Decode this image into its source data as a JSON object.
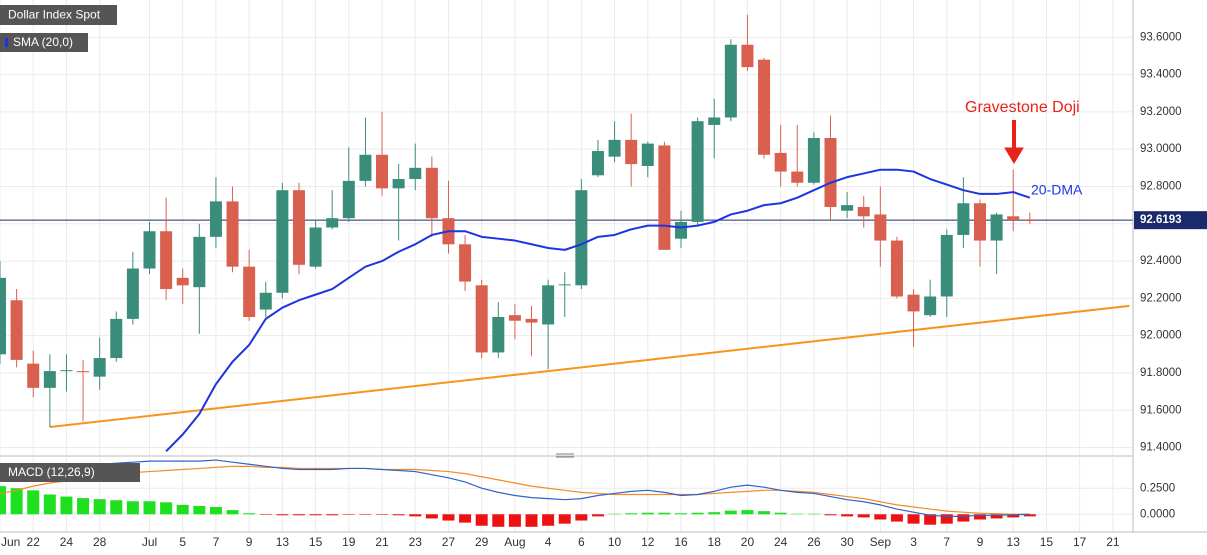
{
  "chart_data": {
    "type": "candlestick",
    "title": "Dollar Index Spot",
    "categories": [
      "Jun",
      null,
      "22",
      null,
      "24",
      null,
      "28",
      null,
      null,
      "Jul",
      null,
      "5",
      null,
      "7",
      null,
      "9",
      null,
      "13",
      null,
      "15",
      null,
      "19",
      null,
      "21",
      null,
      "23",
      null,
      "27",
      null,
      "29",
      null,
      "Aug",
      null,
      "4",
      null,
      "6",
      null,
      "10",
      null,
      "12",
      null,
      "16",
      null,
      "18",
      null,
      "20",
      null,
      "24",
      null,
      "26",
      null,
      "30",
      null,
      "Sep",
      null,
      "3",
      null,
      "7",
      null,
      "9",
      null,
      "13",
      null,
      "15",
      null,
      "17",
      null,
      "21",
      null
    ],
    "candles": {
      "up_color": "#3b8d7b",
      "down_color": "#d9604f",
      "open": [
        91.9,
        92.19,
        91.85,
        91.72,
        91.81,
        91.81,
        91.78,
        91.88,
        92.09,
        92.36,
        92.56,
        92.31,
        92.26,
        92.53,
        92.72,
        92.37,
        92.14,
        92.23,
        92.78,
        92.37,
        92.58,
        92.63,
        92.83,
        92.97,
        92.79,
        92.84,
        92.9,
        92.63,
        92.49,
        92.27,
        91.91,
        92.11,
        92.09,
        92.06,
        92.27,
        92.27,
        92.86,
        92.96,
        93.05,
        92.91,
        93.02,
        92.52,
        92.61,
        93.13,
        93.17,
        93.56,
        93.48,
        92.98,
        92.88,
        92.82,
        93.06,
        92.67,
        92.69,
        92.65,
        92.51,
        92.22,
        92.11,
        92.21,
        92.54,
        92.71,
        92.51,
        92.64,
        92.62,
        null,
        null,
        null,
        null,
        null,
        null
      ],
      "high": [
        92.4,
        92.25,
        91.92,
        91.9,
        91.9,
        91.87,
        91.99,
        92.13,
        92.45,
        92.61,
        92.74,
        92.36,
        92.6,
        92.85,
        92.8,
        92.46,
        92.29,
        92.82,
        92.82,
        92.62,
        92.78,
        93.01,
        93.17,
        93.2,
        92.92,
        93.03,
        92.96,
        92.83,
        92.54,
        92.3,
        92.18,
        92.17,
        92.16,
        92.3,
        92.34,
        92.84,
        93.05,
        93.15,
        93.19,
        93.04,
        93.04,
        92.67,
        93.17,
        93.27,
        93.59,
        93.72,
        93.49,
        93.13,
        93.13,
        93.09,
        93.18,
        92.77,
        92.75,
        92.8,
        92.53,
        92.25,
        92.3,
        92.57,
        92.85,
        92.73,
        92.66,
        92.89,
        92.66,
        null,
        null,
        null,
        null,
        null,
        null
      ],
      "low": [
        91.85,
        91.83,
        91.67,
        91.51,
        91.7,
        91.54,
        91.71,
        91.86,
        92.06,
        92.33,
        92.19,
        92.17,
        92.01,
        92.47,
        92.34,
        92.08,
        92.1,
        92.2,
        92.33,
        92.36,
        92.57,
        92.61,
        92.8,
        92.75,
        92.51,
        92.78,
        92.53,
        92.44,
        92.24,
        91.88,
        91.88,
        91.98,
        91.89,
        91.82,
        92.1,
        92.25,
        92.85,
        92.93,
        92.8,
        92.85,
        92.46,
        92.47,
        92.59,
        92.95,
        93.15,
        93.42,
        92.95,
        92.8,
        92.8,
        92.81,
        92.62,
        92.63,
        92.58,
        92.37,
        92.2,
        91.94,
        92.1,
        92.1,
        92.47,
        92.37,
        92.33,
        92.56,
        92.6,
        null,
        null,
        null,
        null,
        null,
        null
      ],
      "close": [
        92.31,
        91.87,
        91.72,
        91.81,
        91.815,
        91.805,
        91.88,
        92.09,
        92.36,
        92.56,
        92.25,
        92.27,
        92.53,
        92.72,
        92.37,
        92.1,
        92.23,
        92.78,
        92.38,
        92.58,
        92.63,
        92.83,
        92.97,
        92.79,
        92.84,
        92.9,
        92.63,
        92.49,
        92.29,
        91.91,
        92.1,
        92.08,
        92.07,
        92.27,
        92.275,
        92.78,
        92.99,
        93.05,
        92.92,
        93.03,
        92.46,
        92.61,
        93.15,
        93.17,
        93.56,
        93.44,
        92.97,
        92.88,
        92.82,
        93.06,
        92.69,
        92.7,
        92.64,
        92.51,
        92.21,
        92.13,
        92.21,
        92.54,
        92.71,
        92.51,
        92.65,
        92.62,
        92.6193,
        null,
        null,
        null,
        null,
        null,
        null
      ]
    },
    "sma": {
      "name": "SMA (20,0)",
      "label": "20-DMA",
      "color": "#1d35e0",
      "values": [
        null,
        null,
        null,
        null,
        null,
        null,
        null,
        null,
        null,
        null,
        91.38,
        91.47,
        91.58,
        91.74,
        91.86,
        91.95,
        92.09,
        92.15,
        92.19,
        92.22,
        92.25,
        92.31,
        92.37,
        92.4,
        92.45,
        92.49,
        92.54,
        92.56,
        92.56,
        92.53,
        92.52,
        92.51,
        92.49,
        92.47,
        92.46,
        92.49,
        92.53,
        92.54,
        92.57,
        92.59,
        92.59,
        92.58,
        92.59,
        92.61,
        92.65,
        92.67,
        92.7,
        92.71,
        92.74,
        92.78,
        92.82,
        92.85,
        92.87,
        92.89,
        92.89,
        92.88,
        92.84,
        92.81,
        92.78,
        92.76,
        92.76,
        92.77,
        92.74,
        null,
        null,
        null,
        null,
        null,
        null
      ]
    },
    "trendline": {
      "color": "#f7941d",
      "x": [
        3,
        68
      ],
      "values": [
        91.51,
        92.16
      ]
    },
    "last_price": {
      "value": 92.6193,
      "color": "#1a2a6c"
    },
    "annotations": [
      {
        "text": "Gravestone Doji",
        "color": "#e8231a"
      }
    ],
    "ylim": [
      91.36,
      93.8
    ],
    "yticks": [
      {
        "value": 91.4,
        "label": "91.4000"
      },
      {
        "value": 91.6,
        "label": "91.6000"
      },
      {
        "value": 91.8,
        "label": "91.8000"
      },
      {
        "value": 92.0,
        "label": "92.0000"
      },
      {
        "value": 92.2,
        "label": "92.2000"
      },
      {
        "value": 92.4,
        "label": "92.4000"
      },
      {
        "value": 92.6,
        "label": "92.6000"
      },
      {
        "value": 92.8,
        "label": "92.8000"
      },
      {
        "value": 93.0,
        "label": "93.0000"
      },
      {
        "value": 93.2,
        "label": "93.2000"
      },
      {
        "value": 93.4,
        "label": "93.4000"
      },
      {
        "value": 93.6,
        "label": "93.6000"
      }
    ],
    "grid": true,
    "macd": {
      "type": "macd",
      "name": "MACD (12,26,9)",
      "ylim": [
        -0.17,
        0.54
      ],
      "yticks": [
        {
          "value": 0,
          "label": "0.0000"
        },
        {
          "value": 0.25,
          "label": "0.2500"
        }
      ],
      "histogram": {
        "up_color": "#1ee01e",
        "down_color": "#ee1111",
        "values": [
          0.27,
          0.25,
          0.23,
          0.19,
          0.17,
          0.155,
          0.145,
          0.135,
          0.125,
          0.125,
          0.115,
          0.09,
          0.08,
          0.07,
          0.04,
          0.01,
          -0.005,
          -0.01,
          -0.01,
          -0.01,
          -0.01,
          -0.005,
          -0.005,
          -0.005,
          -0.01,
          -0.02,
          -0.04,
          -0.06,
          -0.08,
          -0.11,
          -0.12,
          -0.12,
          -0.12,
          -0.11,
          -0.09,
          -0.06,
          -0.02,
          0.005,
          0.01,
          0.015,
          0.015,
          0.01,
          0.015,
          0.02,
          0.035,
          0.04,
          0.03,
          0.015,
          0.005,
          0.005,
          -0.01,
          -0.02,
          -0.03,
          -0.05,
          -0.07,
          -0.09,
          -0.1,
          -0.09,
          -0.07,
          -0.05,
          -0.04,
          -0.03,
          -0.02,
          null,
          null,
          null,
          null,
          null,
          null
        ]
      },
      "macd": {
        "color": "#2f63c8",
        "values": [
          0.45,
          0.46,
          0.46,
          0.46,
          0.46,
          0.47,
          0.48,
          0.49,
          0.5,
          0.51,
          0.51,
          0.51,
          0.51,
          0.52,
          0.5,
          0.48,
          0.46,
          0.44,
          0.43,
          0.43,
          0.43,
          0.44,
          0.44,
          0.43,
          0.42,
          0.41,
          0.38,
          0.35,
          0.31,
          0.25,
          0.21,
          0.18,
          0.16,
          0.15,
          0.14,
          0.15,
          0.18,
          0.2,
          0.22,
          0.23,
          0.21,
          0.18,
          0.19,
          0.22,
          0.26,
          0.28,
          0.26,
          0.23,
          0.21,
          0.2,
          0.17,
          0.14,
          0.12,
          0.09,
          0.05,
          0.02,
          -0.01,
          -0.02,
          -0.02,
          -0.01,
          -0.01,
          -0.005,
          0.0,
          null,
          null,
          null,
          null,
          null,
          null
        ]
      },
      "signal": {
        "color": "#f28c28",
        "values": [
          0.2,
          0.23,
          0.27,
          0.3,
          0.32,
          0.34,
          0.36,
          0.38,
          0.4,
          0.41,
          0.42,
          0.43,
          0.44,
          0.45,
          0.46,
          0.46,
          0.45,
          0.45,
          0.44,
          0.44,
          0.44,
          0.44,
          0.44,
          0.43,
          0.43,
          0.43,
          0.42,
          0.41,
          0.39,
          0.36,
          0.33,
          0.3,
          0.27,
          0.25,
          0.23,
          0.21,
          0.2,
          0.19,
          0.19,
          0.19,
          0.19,
          0.19,
          0.19,
          0.2,
          0.21,
          0.22,
          0.23,
          0.23,
          0.22,
          0.21,
          0.19,
          0.17,
          0.15,
          0.12,
          0.09,
          0.07,
          0.05,
          0.03,
          0.02,
          0.01,
          0.005,
          0.0,
          0.0,
          null,
          null,
          null,
          null,
          null,
          null
        ]
      }
    }
  }
}
